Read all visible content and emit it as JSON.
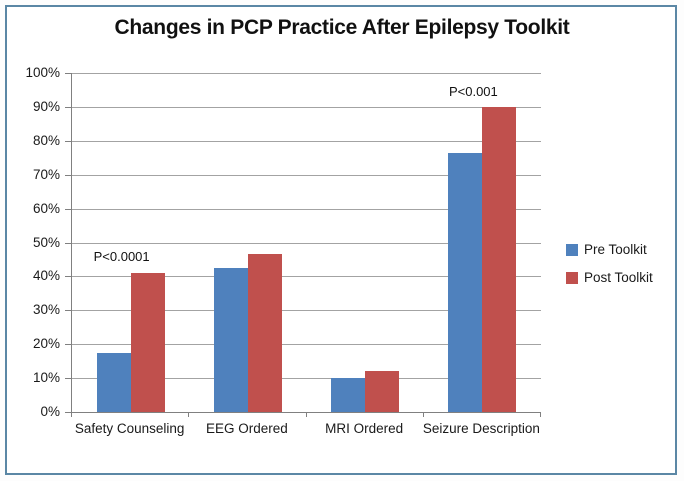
{
  "title": "Changes in PCP Practice After Epilepsy Toolkit",
  "chart_data": {
    "type": "bar",
    "categories": [
      "Safety Counseling",
      "EEG Ordered",
      "MRI Ordered",
      "Seizure Description"
    ],
    "series": [
      {
        "name": "Pre Toolkit",
        "color": "#4F81BD",
        "values": [
          17.5,
          42.5,
          10,
          76.5
        ]
      },
      {
        "name": "Post Toolkit",
        "color": "#C0504D",
        "values": [
          41,
          46.5,
          12,
          90
        ]
      }
    ],
    "annotations": [
      {
        "text": "P<0.0001",
        "category_index": 0,
        "y_pct": 45.5
      },
      {
        "text": "P<0.001",
        "category_index": 3,
        "y_pct": 94
      }
    ],
    "xlabel": "",
    "ylabel": "",
    "ylim": [
      0,
      100
    ],
    "ytick_step": 10,
    "ytick_labels": [
      "0%",
      "10%",
      "20%",
      "30%",
      "40%",
      "50%",
      "60%",
      "70%",
      "80%",
      "90%",
      "100%"
    ],
    "grid": true,
    "legend_position": "right",
    "legend_labels": [
      "Pre Toolkit",
      "Post Toolkit"
    ]
  },
  "colors": {
    "pre_series": "#4F81BD",
    "post_series": "#C0504D",
    "gridline": "#a3a3a3",
    "axis": "#808080",
    "frame_border": "#5b87a5",
    "text": "#1a1a1a"
  }
}
